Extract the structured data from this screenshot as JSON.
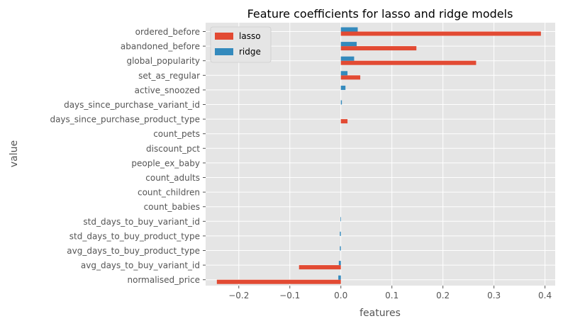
{
  "chart_data": {
    "type": "bar",
    "orientation": "horizontal",
    "title": "Feature coefficients for lasso and ridge models",
    "xlabel": "features",
    "ylabel": "value",
    "xlim": [
      -0.265,
      0.42
    ],
    "xticks": [
      -0.2,
      -0.1,
      0.0,
      0.1,
      0.2,
      0.3,
      0.4
    ],
    "xtick_labels": [
      "−0.2",
      "−0.1",
      "0.0",
      "0.1",
      "0.2",
      "0.3",
      "0.4"
    ],
    "grid": true,
    "legend_position": "top-left",
    "categories": [
      "ordered_before",
      "abandoned_before",
      "global_popularity",
      "set_as_regular",
      "active_snoozed",
      "days_since_purchase_variant_id",
      "days_since_purchase_product_type",
      "count_pets",
      "discount_pct",
      "people_ex_baby",
      "count_adults",
      "count_children",
      "count_babies",
      "std_days_to_buy_variant_id",
      "std_days_to_buy_product_type",
      "avg_days_to_buy_product_type",
      "avg_days_to_buy_variant_id",
      "normalised_price"
    ],
    "series": [
      {
        "name": "lasso",
        "color": "#e24a33",
        "values": [
          0.392,
          0.148,
          0.265,
          0.038,
          0.0,
          0.0,
          0.013,
          0.0,
          0.0,
          0.0,
          0.0,
          0.0,
          0.0,
          0.0,
          0.0,
          0.0,
          -0.082,
          -0.243
        ]
      },
      {
        "name": "ridge",
        "color": "#348abd",
        "values": [
          0.033,
          0.031,
          0.026,
          0.013,
          0.009,
          0.002,
          0.0,
          0.0,
          0.0,
          0.0,
          0.0,
          0.0,
          0.0,
          -0.001,
          -0.002,
          -0.002,
          -0.004,
          -0.005
        ]
      }
    ]
  }
}
